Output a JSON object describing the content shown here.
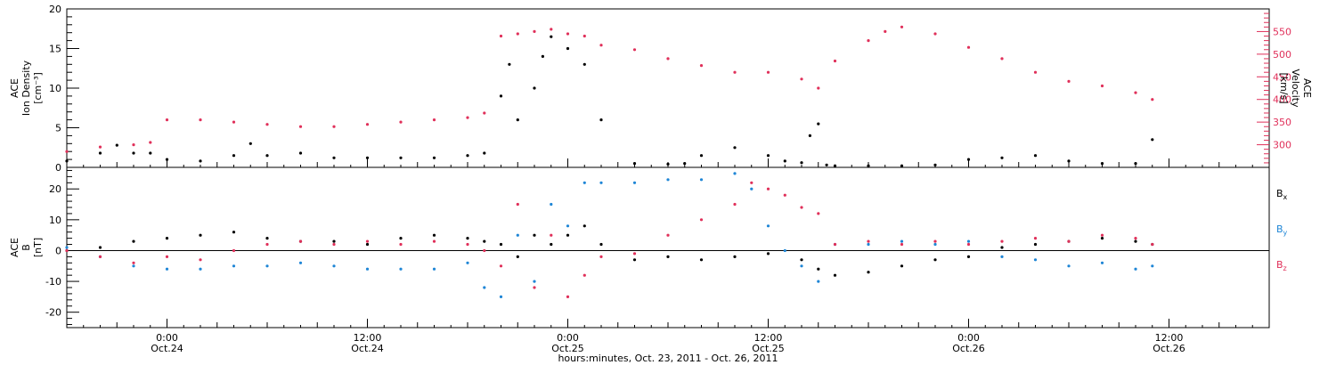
{
  "chart_data": [
    {
      "type": "scatter",
      "panel": "plasma",
      "ylabel_left": [
        "ACE",
        "Ion Density",
        "[cm⁻³]"
      ],
      "ylabel_right": [
        "ACE",
        "Velocity",
        "[km/s]"
      ],
      "xlim_hours": [
        -6,
        66
      ],
      "ylim_left": [
        0,
        20
      ],
      "ylim_right": [
        250,
        600
      ],
      "left_ticks": [
        "0",
        "5",
        "10",
        "15",
        "20"
      ],
      "right_ticks": [
        "300",
        "350",
        "400",
        "450",
        "500",
        "550"
      ],
      "series": [
        {
          "name": "Ion Density",
          "axis": "left",
          "color": "#000000",
          "x": [
            -6,
            -4,
            -3,
            -2,
            -1,
            0,
            2,
            4,
            5,
            6,
            8,
            10,
            12,
            14,
            16,
            18,
            19,
            20,
            20.5,
            21,
            22,
            22.5,
            23,
            24,
            25,
            26,
            28,
            30,
            31,
            32,
            34,
            36,
            37,
            38,
            38.5,
            39,
            39.5,
            40,
            42,
            44,
            46,
            48,
            50,
            52,
            54,
            56,
            58,
            59
          ],
          "y": [
            0.8,
            1.8,
            2.8,
            1.8,
            1.8,
            1.0,
            0.8,
            1.5,
            3.0,
            1.5,
            1.8,
            1.2,
            1.2,
            1.2,
            1.2,
            1.5,
            1.8,
            9.0,
            13.0,
            6.0,
            10.0,
            14.0,
            16.5,
            15.0,
            13.0,
            6.0,
            0.5,
            0.4,
            0.5,
            1.5,
            2.5,
            1.5,
            0.8,
            0.6,
            4.0,
            5.5,
            0.3,
            0.2,
            0.2,
            0.2,
            0.3,
            1.0,
            1.2,
            1.5,
            0.8,
            0.5,
            0.5,
            3.5
          ]
        },
        {
          "name": "Velocity",
          "axis": "right",
          "color": "#e0305a",
          "x": [
            -6,
            -4,
            -2,
            -1,
            0,
            2,
            4,
            6,
            8,
            10,
            12,
            14,
            16,
            18,
            19,
            20,
            21,
            22,
            23,
            24,
            25,
            26,
            28,
            30,
            32,
            34,
            36,
            38,
            39,
            40,
            42,
            43,
            44,
            46,
            48,
            50,
            52,
            54,
            56,
            58,
            59
          ],
          "y": [
            285,
            295,
            300,
            305,
            355,
            355,
            350,
            345,
            340,
            340,
            345,
            350,
            355,
            360,
            370,
            540,
            545,
            550,
            555,
            545,
            540,
            520,
            510,
            490,
            475,
            460,
            460,
            445,
            425,
            485,
            530,
            550,
            560,
            545,
            515,
            490,
            460,
            440,
            430,
            415,
            400
          ]
        }
      ]
    },
    {
      "type": "scatter",
      "panel": "magnetic-field",
      "ylabel_left": [
        "ACE",
        "B",
        "[nT]"
      ],
      "xlim_hours": [
        -6,
        66
      ],
      "ylim_left": [
        -25,
        27
      ],
      "left_ticks": [
        "-20",
        "-10",
        "0",
        "10",
        "20"
      ],
      "zero_line": true,
      "legend_position": "right",
      "series": [
        {
          "name": "Bx",
          "color": "#000000",
          "x": [
            -6,
            -4,
            -2,
            0,
            2,
            4,
            6,
            8,
            10,
            12,
            14,
            16,
            18,
            19,
            20,
            21,
            22,
            23,
            24,
            25,
            26,
            28,
            30,
            32,
            34,
            36,
            38,
            39,
            40,
            42,
            44,
            46,
            48,
            50,
            52,
            54,
            56,
            58,
            59
          ],
          "y": [
            0,
            1,
            3,
            4,
            5,
            6,
            4,
            3,
            3,
            2,
            4,
            5,
            4,
            3,
            2,
            -2,
            5,
            2,
            5,
            8,
            2,
            -3,
            -2,
            -3,
            -2,
            -1,
            -3,
            -6,
            -8,
            -7,
            -5,
            -3,
            -2,
            1,
            2,
            3,
            4,
            3,
            2
          ]
        },
        {
          "name": "By",
          "color": "#1f86d6",
          "x": [
            -6,
            -4,
            -2,
            0,
            2,
            4,
            6,
            8,
            10,
            12,
            14,
            16,
            18,
            19,
            20,
            21,
            22,
            23,
            24,
            25,
            26,
            28,
            30,
            32,
            34,
            35,
            36,
            37,
            38,
            39,
            40,
            42,
            44,
            46,
            48,
            50,
            52,
            54,
            56,
            58,
            59
          ],
          "y": [
            1,
            -2,
            -5,
            -6,
            -6,
            -5,
            -5,
            -4,
            -5,
            -6,
            -6,
            -6,
            -4,
            -12,
            -15,
            5,
            -10,
            15,
            8,
            22,
            22,
            22,
            23,
            23,
            25,
            20,
            8,
            0,
            -5,
            -10,
            2,
            2,
            3,
            2,
            3,
            -2,
            -3,
            -5,
            -4,
            -6,
            -5
          ]
        },
        {
          "name": "Bz",
          "color": "#e0305a",
          "x": [
            -6,
            -4,
            -2,
            0,
            2,
            4,
            6,
            8,
            10,
            12,
            14,
            16,
            18,
            19,
            20,
            21,
            22,
            23,
            24,
            25,
            26,
            28,
            30,
            32,
            34,
            35,
            36,
            37,
            38,
            39,
            40,
            42,
            44,
            46,
            48,
            50,
            52,
            54,
            56,
            58,
            59
          ],
          "y": [
            0,
            -2,
            -4,
            -2,
            -3,
            0,
            2,
            3,
            2,
            3,
            2,
            3,
            2,
            0,
            -5,
            15,
            -12,
            5,
            -15,
            -8,
            -2,
            -1,
            5,
            10,
            15,
            22,
            20,
            18,
            14,
            12,
            2,
            3,
            2,
            3,
            2,
            3,
            4,
            3,
            5,
            4,
            2
          ]
        }
      ],
      "legend": [
        {
          "label": "B",
          "sub": "x",
          "color": "#000000"
        },
        {
          "label": "B",
          "sub": "y",
          "color": "#1f86d6"
        },
        {
          "label": "B",
          "sub": "z",
          "color": "#e0305a"
        }
      ]
    }
  ],
  "x_axis": {
    "ticks": [
      {
        "hour": 0,
        "time": "0:00",
        "date": "Oct.24"
      },
      {
        "hour": 12,
        "time": "12:00",
        "date": "Oct.24"
      },
      {
        "hour": 24,
        "time": "0:00",
        "date": "Oct.25"
      },
      {
        "hour": 36,
        "time": "12:00",
        "date": "Oct.25"
      },
      {
        "hour": 48,
        "time": "0:00",
        "date": "Oct.26"
      },
      {
        "hour": 60,
        "time": "12:00",
        "date": "Oct.26"
      }
    ],
    "xlabel": "hours:minutes, Oct. 23, 2011 - Oct. 26, 2011"
  }
}
